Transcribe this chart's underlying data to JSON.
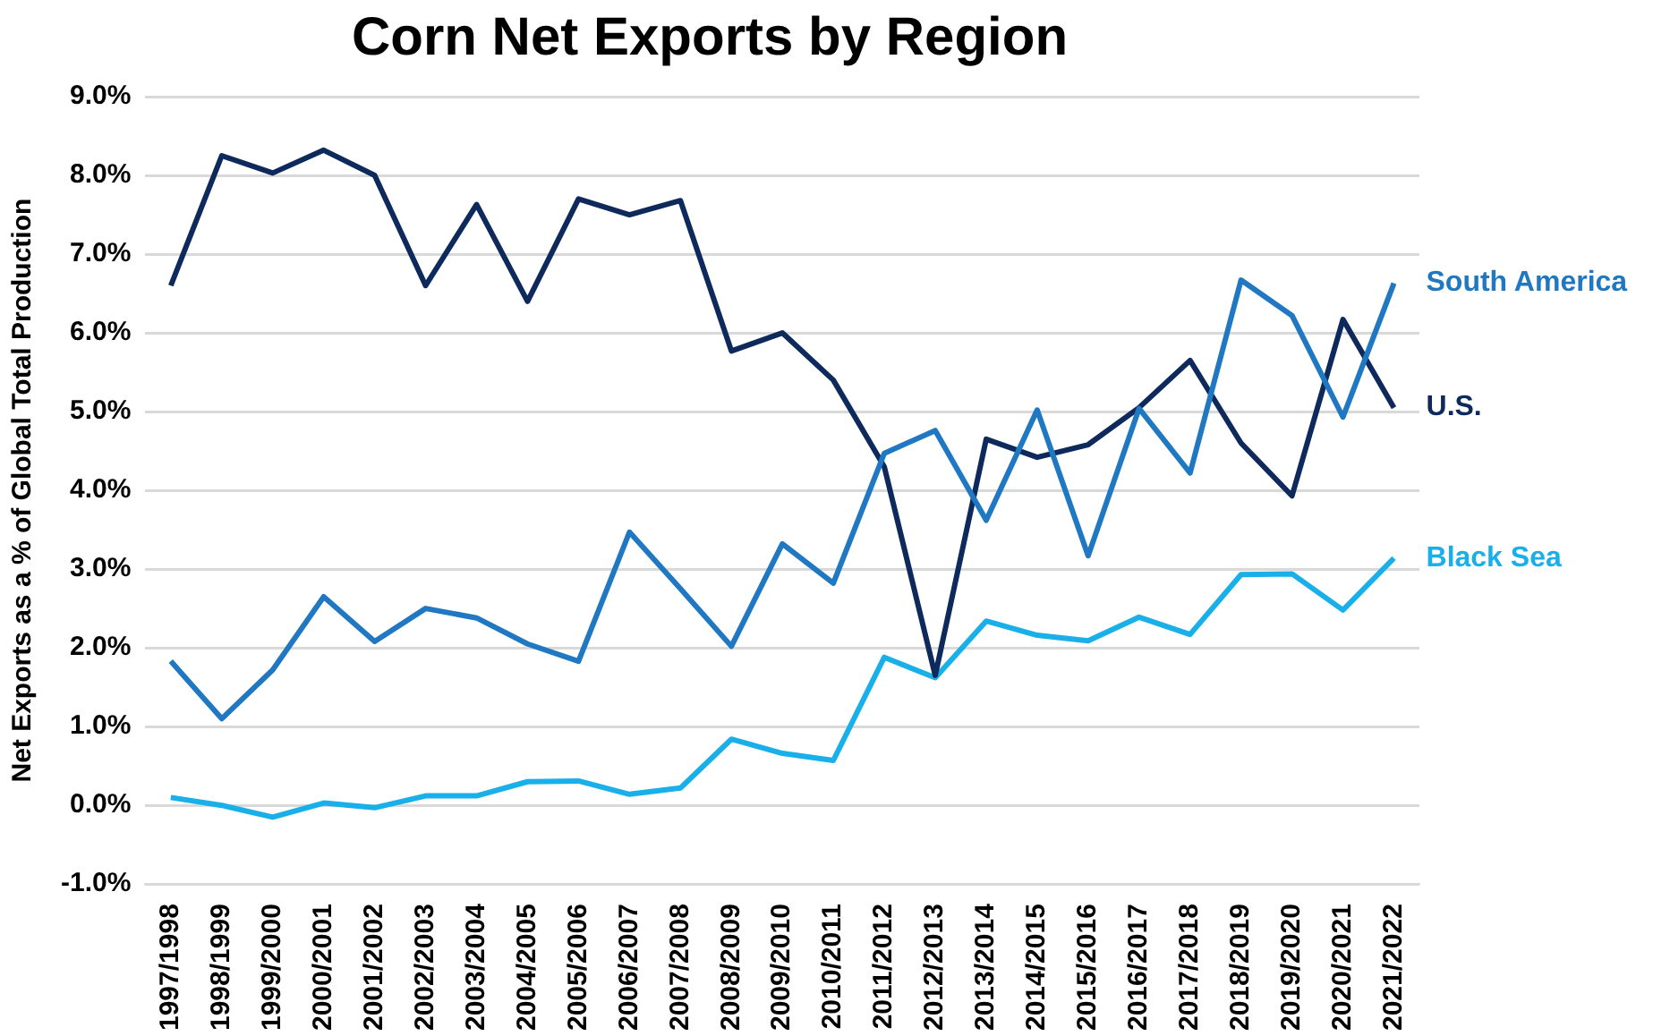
{
  "chart_data": {
    "type": "line",
    "title": "Corn Net Exports by Region",
    "ylabel": "Net Exports as a % of Global Total Production",
    "categories": [
      "1997/1998",
      "1998/1999",
      "1999/2000",
      "2000/2001",
      "2001/2002",
      "2002/2003",
      "2003/2004",
      "2004/2005",
      "2005/2006",
      "2006/2007",
      "2007/2008",
      "2008/2009",
      "2009/2010",
      "2010/2011",
      "2011/2012",
      "2012/2013",
      "2013/2014",
      "2014/2015",
      "2015/2016",
      "2016/2017",
      "2017/2018",
      "2018/2019",
      "2019/2020",
      "2020/2021",
      "2021/2022"
    ],
    "series": [
      {
        "name": "South America",
        "color": "#1f78c1",
        "values": [
          1.83,
          1.1,
          1.72,
          2.65,
          2.08,
          2.5,
          2.38,
          2.05,
          1.83,
          3.47,
          2.75,
          2.02,
          3.32,
          2.82,
          4.47,
          4.76,
          3.62,
          5.02,
          3.17,
          5.04,
          4.22,
          6.67,
          6.22,
          4.93,
          6.63
        ]
      },
      {
        "name": "U.S.",
        "color": "#0e2a5c",
        "values": [
          6.6,
          8.25,
          8.03,
          8.32,
          8.0,
          6.6,
          7.63,
          6.4,
          7.7,
          7.5,
          7.68,
          5.77,
          6.0,
          5.4,
          4.3,
          1.65,
          4.65,
          4.42,
          4.58,
          5.05,
          5.65,
          4.6,
          3.93,
          6.17,
          5.05
        ]
      },
      {
        "name": "Black Sea",
        "color": "#19b0ea",
        "values": [
          0.1,
          0.0,
          -0.15,
          0.03,
          -0.03,
          0.12,
          0.12,
          0.3,
          0.31,
          0.14,
          0.22,
          0.84,
          0.66,
          0.57,
          1.88,
          1.62,
          2.34,
          2.16,
          2.09,
          2.39,
          2.17,
          2.93,
          2.94,
          2.48,
          3.14
        ]
      }
    ],
    "ylim": [
      -1,
      9
    ],
    "yticks": [
      {
        "value": -1,
        "label": "-1.0%"
      },
      {
        "value": 0,
        "label": "0.0%"
      },
      {
        "value": 1,
        "label": "1.0%"
      },
      {
        "value": 2,
        "label": "2.0%"
      },
      {
        "value": 3,
        "label": "3.0%"
      },
      {
        "value": 4,
        "label": "4.0%"
      },
      {
        "value": 5,
        "label": "5.0%"
      },
      {
        "value": 6,
        "label": "6.0%"
      },
      {
        "value": 7,
        "label": "7.0%"
      },
      {
        "value": 8,
        "label": "8.0%"
      },
      {
        "value": 9,
        "label": "9.0%"
      }
    ],
    "grid": "y",
    "legend": false,
    "marker": "none",
    "line_style": "solid"
  }
}
